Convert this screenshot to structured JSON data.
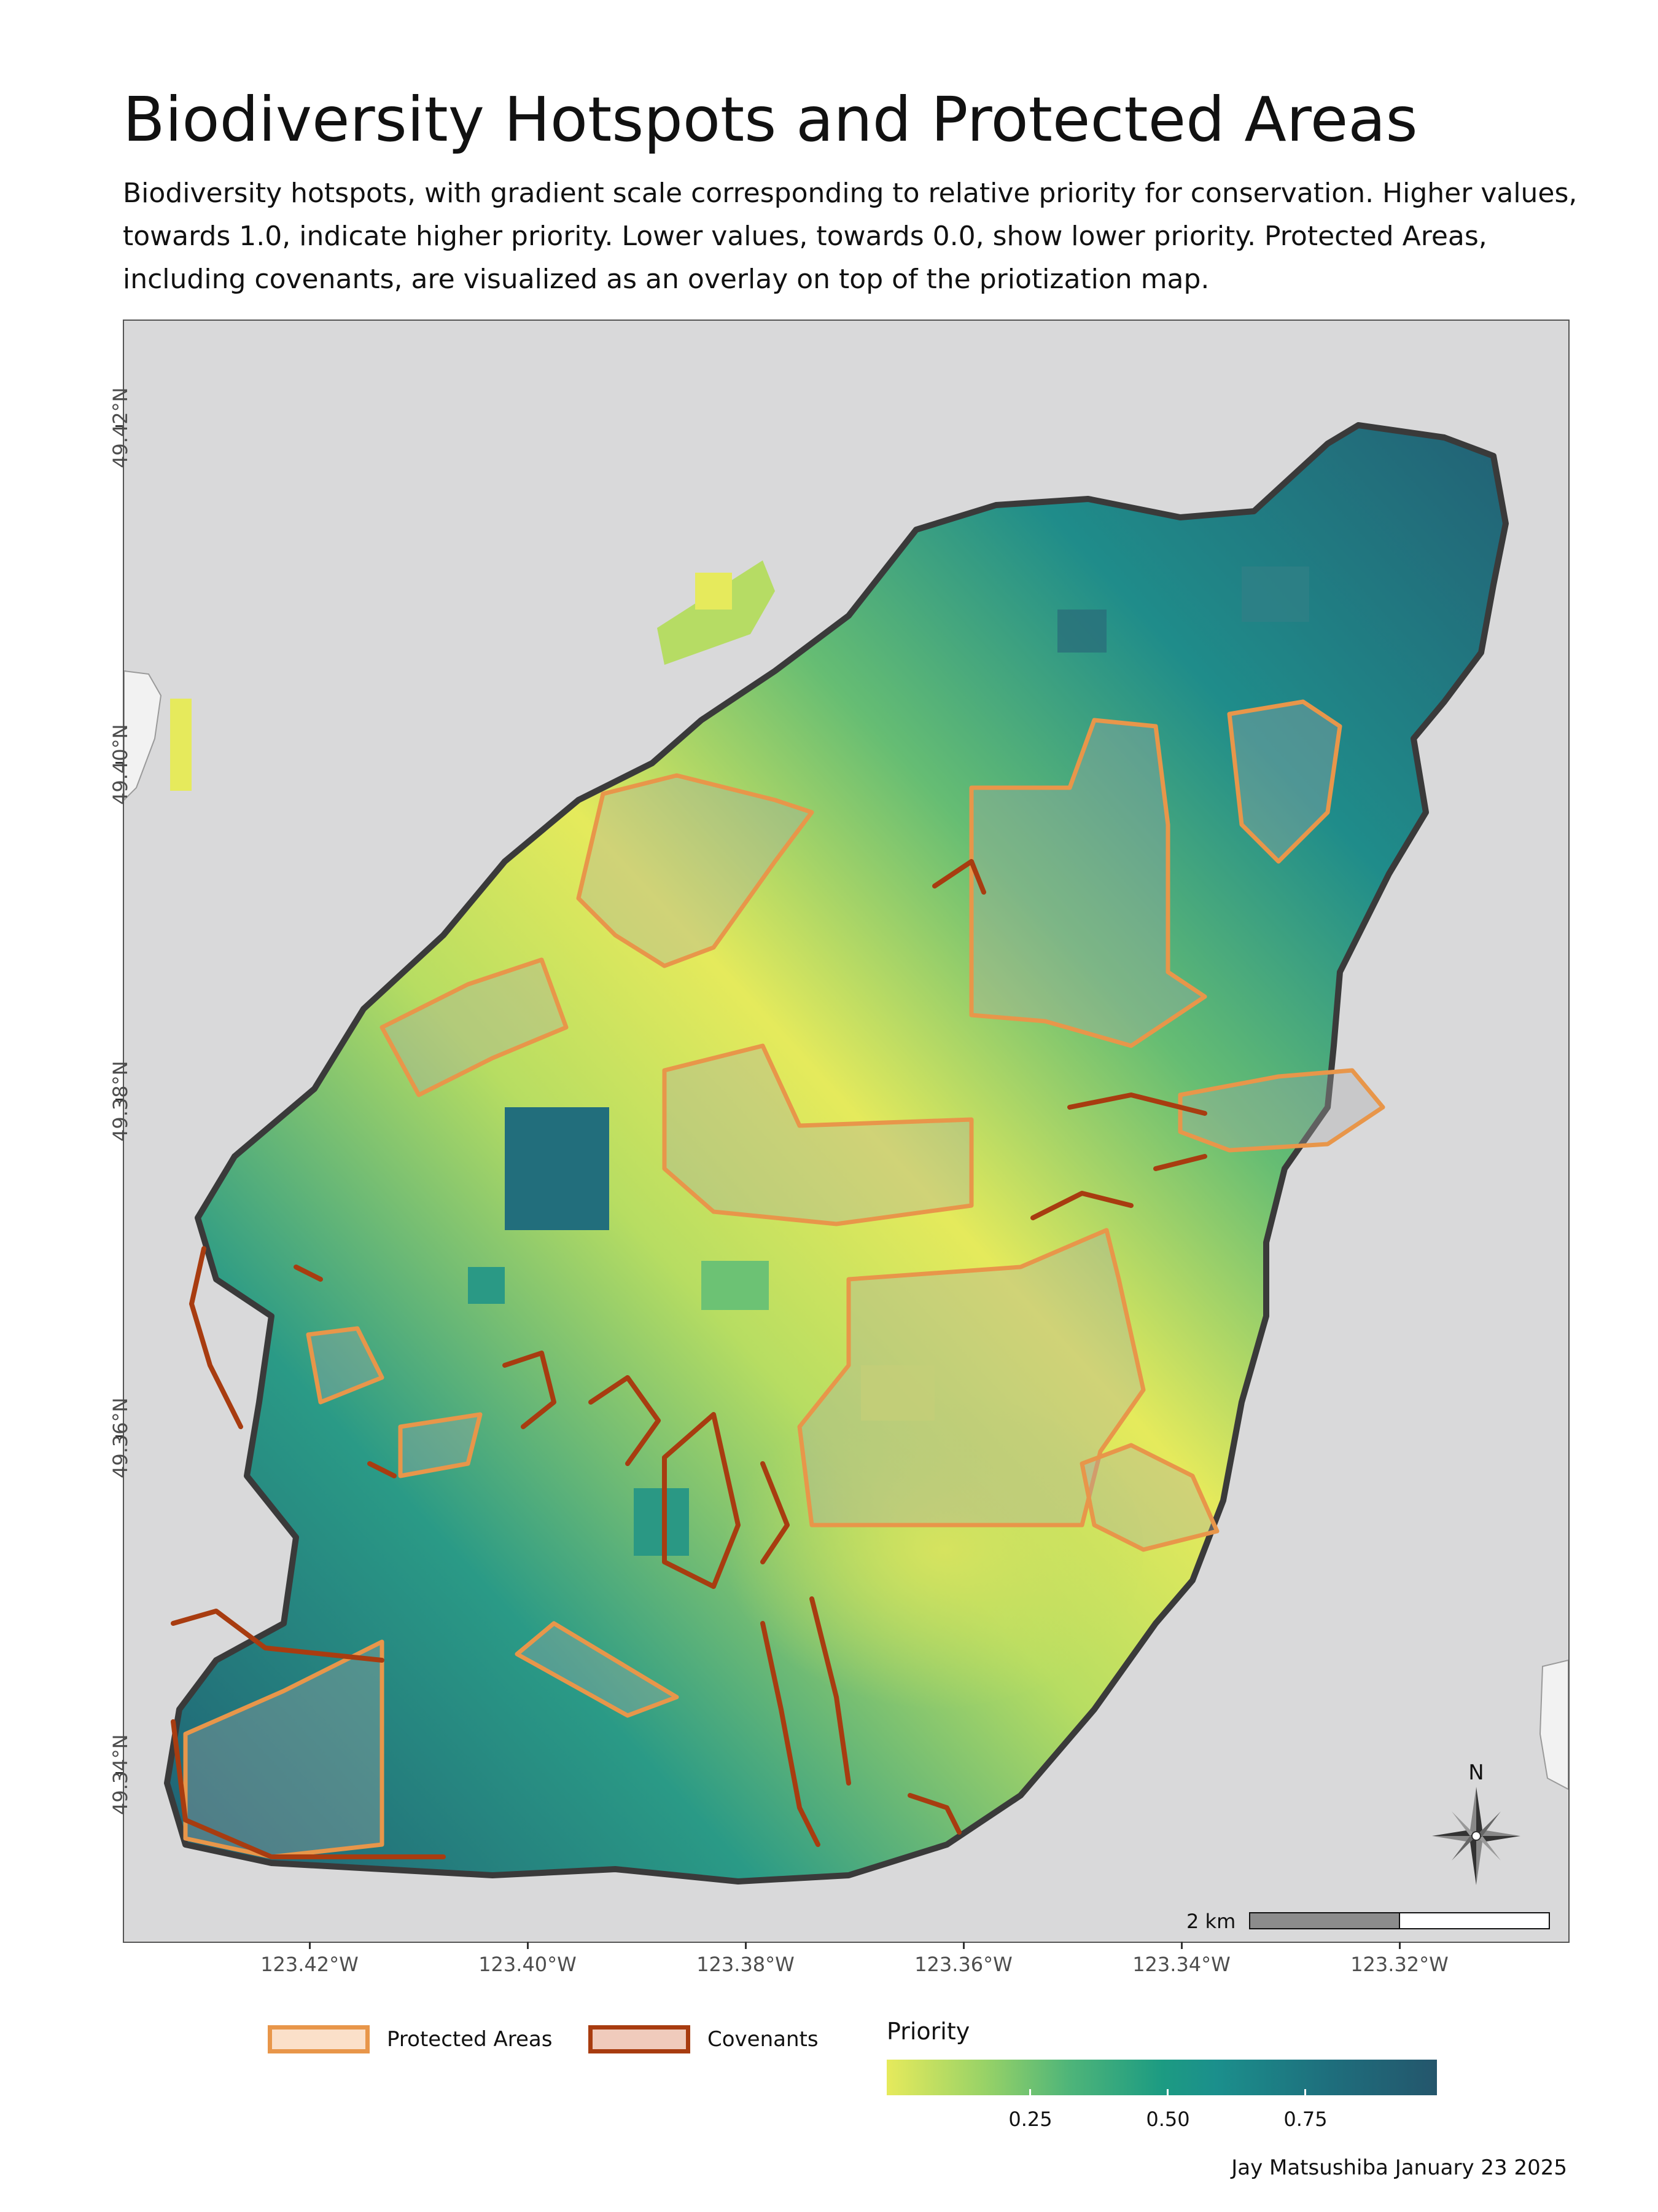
{
  "title": "Biodiversity Hotspots and Protected Areas",
  "subtitle": "Biodiversity hotspots, with gradient scale corresponding to relative priority for conservation. Higher values, towards 1.0, indicate higher priority. Lower values, towards 0.0, show lower priority. Protected Areas, including covenants, are visualized as an overlay on top of the priotization map.",
  "axes": {
    "latitude_ticks": [
      "49.42°N",
      "49.40°N",
      "49.38°N",
      "49.36°N",
      "49.34°N"
    ],
    "longitude_ticks": [
      "123.42°W",
      "123.40°W",
      "123.38°W",
      "123.36°W",
      "123.34°W",
      "123.32°W"
    ]
  },
  "legend": {
    "protected_areas": "Protected Areas",
    "covenants": "Covenants",
    "priority_title": "Priority",
    "priority_ticks": [
      "0.25",
      "0.50",
      "0.75"
    ]
  },
  "scale_bar": {
    "label": "2 km"
  },
  "north_arrow": {
    "label": "N"
  },
  "credit": "Jay Matsushiba January 23 2025",
  "colors": {
    "background": "#d9d9da",
    "protected_area_outline": "#e8964a",
    "protected_area_fill": "#fbdcc3",
    "covenant_outline": "#a83c10",
    "covenant_fill": "#f0c8b6",
    "island_outline": "#3a3a3a",
    "priority_low": "#e6ea5c",
    "priority_high": "#24566c"
  }
}
